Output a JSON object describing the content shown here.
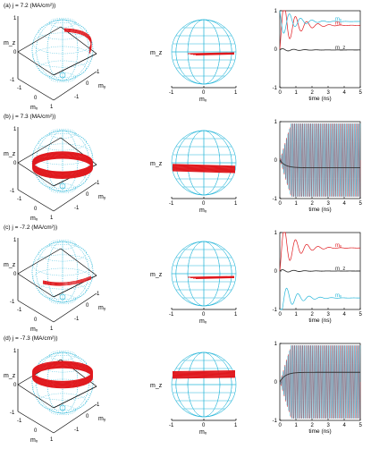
{
  "colors": {
    "sphere": "#26b6d9",
    "trajectory": "#e0191e",
    "mz_line": "#333333",
    "axes": "#000000"
  },
  "panels": [
    {
      "label": "(a) j = 7.2 (MA/cm²))",
      "axis3d": {
        "x": "mₓ",
        "y": "mᵧ",
        "z": "m_z",
        "ticks_x": [
          "-1",
          "0",
          "1"
        ],
        "ticks_y": [
          "-1",
          "0",
          "1"
        ],
        "ticks_z": [
          "-1",
          "0",
          "1"
        ]
      },
      "axis2d": {
        "x": "mₓ",
        "y": "m_z",
        "ticks_x": [
          "-1",
          "0",
          "1"
        ]
      },
      "time": {
        "xlabel": "time (ns)",
        "ticks_x": [
          "0",
          "1",
          "2",
          "3",
          "4",
          "5"
        ],
        "ticks_y": [
          "-1",
          "0",
          "1"
        ],
        "legend": [
          "mₓ",
          "mᵧ",
          "m_z"
        ]
      },
      "trajectory": {
        "type": "precession-top",
        "mz": 0.45
      }
    },
    {
      "label": "(b) j = 7.3 (MA/cm²))",
      "axis3d": {
        "x": "mₓ",
        "y": "mᵧ",
        "z": "m_z",
        "ticks_x": [
          "-1",
          "0",
          "1"
        ],
        "ticks_y": [
          "-1",
          "0",
          "1"
        ],
        "ticks_z": [
          "-1",
          "0",
          "1"
        ]
      },
      "axis2d": {
        "x": "mₓ",
        "y": "m_z",
        "ticks_x": [
          "-1",
          "0",
          "1"
        ]
      },
      "time": {
        "xlabel": "time (ns)",
        "ticks_x": [
          "0",
          "1",
          "2",
          "3",
          "4",
          "5"
        ],
        "ticks_y": [
          "-1",
          "0",
          "1"
        ],
        "legend": []
      },
      "trajectory": {
        "type": "band",
        "mz": -0.15
      }
    },
    {
      "label": "(c) j = -7.2 (MA/cm²))",
      "axis3d": {
        "x": "mₓ",
        "y": "mᵧ",
        "z": "m_z",
        "ticks_x": [
          "-1",
          "0",
          "1"
        ],
        "ticks_y": [
          "-1",
          "0",
          "1"
        ],
        "ticks_z": [
          "-1",
          "0",
          "1"
        ]
      },
      "axis2d": {
        "x": "mₓ",
        "y": "m_z",
        "ticks_x": [
          "-1",
          "0",
          "1"
        ]
      },
      "time": {
        "xlabel": "time (ns)",
        "ticks_x": [
          "0",
          "1",
          "2",
          "3",
          "4",
          "5"
        ],
        "ticks_y": [
          "-1",
          "0",
          "1"
        ],
        "legend": [
          "mₓ",
          "m_z",
          "mᵧ"
        ]
      },
      "trajectory": {
        "type": "precession-bottom",
        "mz": -0.3
      }
    },
    {
      "label": "(d) j = -7.3 (MA/cm²))",
      "axis3d": {
        "x": "mₓ",
        "y": "mᵧ",
        "z": "m_z",
        "ticks_x": [
          "-1",
          "0",
          "1"
        ],
        "ticks_y": [
          "-1",
          "0",
          "1"
        ],
        "ticks_z": [
          "-1",
          "0",
          "1"
        ]
      },
      "axis2d": {
        "x": "mₓ",
        "y": "m_z",
        "ticks_x": [
          "-1",
          "0",
          "1"
        ]
      },
      "time": {
        "xlabel": "time (ns)",
        "ticks_x": [
          "0",
          "1",
          "2",
          "3",
          "4",
          "5"
        ],
        "ticks_y": [
          "-1",
          "0",
          "1"
        ],
        "legend": []
      },
      "trajectory": {
        "type": "band",
        "mz": 0.3
      }
    }
  ],
  "chart_data": [
    {
      "type": "line",
      "panel": "(a)",
      "xlabel": "time (ns)",
      "xlim": [
        0,
        5
      ],
      "ylim": [
        -1,
        1
      ],
      "series": [
        {
          "name": "mₓ",
          "shape": "damped",
          "final": 0.62,
          "start": 0.0,
          "amp": 0.4,
          "decay": 1.2
        },
        {
          "name": "mᵧ",
          "shape": "damped",
          "final": 0.72,
          "start": 1.0,
          "amp": 0.3,
          "decay": 1.2
        },
        {
          "name": "m_z",
          "shape": "damped",
          "final": -0.02,
          "start": -0.02,
          "amp": 0.04,
          "decay": 1.0
        }
      ]
    },
    {
      "type": "line",
      "panel": "(b)",
      "xlabel": "time (ns)",
      "xlim": [
        0,
        5
      ],
      "ylim": [
        -1,
        1
      ],
      "series": [
        {
          "name": "mₓ",
          "shape": "oscillation",
          "amp": 0.95,
          "freq": 10
        },
        {
          "name": "mᵧ",
          "shape": "oscillation",
          "amp": 0.95,
          "freq": 10
        },
        {
          "name": "m_z",
          "shape": "relax",
          "start": 0.0,
          "final": -0.2
        }
      ]
    },
    {
      "type": "line",
      "panel": "(c)",
      "xlabel": "time (ns)",
      "xlim": [
        0,
        5
      ],
      "ylim": [
        -1,
        1
      ],
      "series": [
        {
          "name": "mₓ",
          "shape": "damped",
          "final": 0.6,
          "start": 0.0,
          "amp": 0.35,
          "decay": 1.2
        },
        {
          "name": "mᵧ",
          "shape": "damped",
          "final": -0.7,
          "start": -1.0,
          "amp": 0.3,
          "decay": 1.2
        },
        {
          "name": "m_z",
          "shape": "damped",
          "final": 0.0,
          "start": 0.0,
          "amp": 0.04,
          "decay": 1.0
        }
      ]
    },
    {
      "type": "line",
      "panel": "(d)",
      "xlabel": "time (ns)",
      "xlim": [
        0,
        5
      ],
      "ylim": [
        -1,
        1
      ],
      "series": [
        {
          "name": "mₓ",
          "shape": "oscillation",
          "amp": 0.95,
          "freq": 10
        },
        {
          "name": "mᵧ",
          "shape": "oscillation",
          "amp": 0.95,
          "freq": 10
        },
        {
          "name": "m_z",
          "shape": "relax",
          "start": 0.0,
          "final": 0.25
        }
      ]
    }
  ]
}
